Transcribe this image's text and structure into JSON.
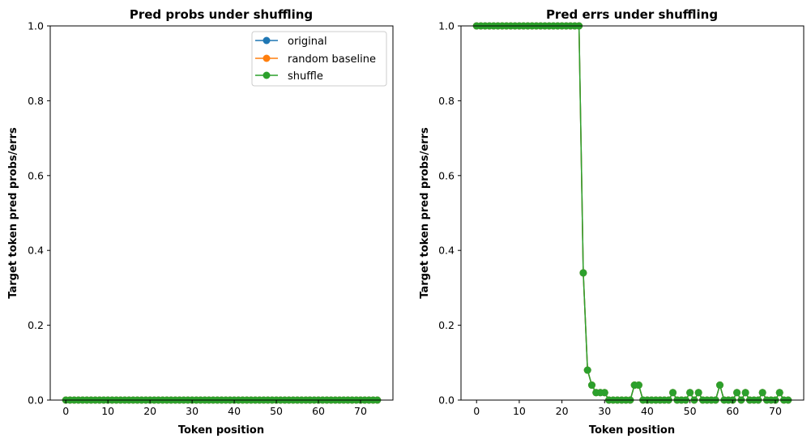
{
  "chart_data": [
    {
      "type": "line",
      "title": "Pred probs under shuffling",
      "xlabel": "Token position",
      "ylabel": "Target token pred probs/errs",
      "xlim": [
        -3.7,
        77.7
      ],
      "ylim": [
        0,
        1
      ],
      "xticks": [
        "0",
        "10",
        "20",
        "30",
        "40",
        "50",
        "60",
        "70"
      ],
      "yticks": [
        "0.0",
        "0.2",
        "0.4",
        "0.6",
        "0.8",
        "1.0"
      ],
      "grid": false,
      "legend": {
        "placement": "top-right",
        "entries": [
          "original",
          "random baseline",
          "shuffle"
        ]
      },
      "series": [
        {
          "name": "original",
          "color": "#1f77b4",
          "x_start": 0,
          "values": [
            0,
            0,
            0,
            0,
            0,
            0,
            0,
            0,
            0,
            0,
            0,
            0,
            0,
            0,
            0,
            0,
            0,
            0,
            0,
            0,
            0,
            0,
            0,
            0,
            0,
            0,
            0,
            0,
            0,
            0,
            0,
            0,
            0,
            0,
            0,
            0,
            0,
            0,
            0,
            0,
            0,
            0,
            0,
            0,
            0,
            0,
            0,
            0,
            0,
            0,
            0,
            0,
            0,
            0,
            0,
            0,
            0,
            0,
            0,
            0,
            0,
            0,
            0,
            0,
            0,
            0,
            0,
            0,
            0,
            0,
            0,
            0,
            0,
            0,
            0
          ]
        },
        {
          "name": "random baseline",
          "color": "#ff7f0e",
          "x_start": 0,
          "values": [
            0,
            0,
            0,
            0,
            0,
            0,
            0,
            0,
            0,
            0,
            0,
            0,
            0,
            0,
            0,
            0,
            0,
            0,
            0,
            0,
            0,
            0,
            0,
            0,
            0,
            0,
            0,
            0,
            0,
            0,
            0,
            0,
            0,
            0,
            0,
            0,
            0,
            0,
            0,
            0,
            0,
            0,
            0,
            0,
            0,
            0,
            0,
            0,
            0,
            0,
            0,
            0,
            0,
            0,
            0,
            0,
            0,
            0,
            0,
            0,
            0,
            0,
            0,
            0,
            0,
            0,
            0,
            0,
            0,
            0,
            0,
            0,
            0,
            0,
            0
          ]
        },
        {
          "name": "shuffle",
          "color": "#2ca02c",
          "x_start": 0,
          "values": [
            0,
            0,
            0,
            0,
            0,
            0,
            0,
            0,
            0,
            0,
            0,
            0,
            0,
            0,
            0,
            0,
            0,
            0,
            0,
            0,
            0,
            0,
            0,
            0,
            0,
            0,
            0,
            0,
            0,
            0,
            0,
            0,
            0,
            0,
            0,
            0,
            0,
            0,
            0,
            0,
            0,
            0,
            0,
            0,
            0,
            0,
            0,
            0,
            0,
            0,
            0,
            0,
            0,
            0,
            0,
            0,
            0,
            0,
            0,
            0,
            0,
            0,
            0,
            0,
            0,
            0,
            0,
            0,
            0,
            0,
            0,
            0,
            0,
            0,
            0
          ]
        }
      ]
    },
    {
      "type": "line",
      "title": "Pred errs under shuffling",
      "xlabel": "Token position",
      "ylabel": "Target token pred probs/errs",
      "xlim": [
        -3.65,
        76.65
      ],
      "ylim": [
        0,
        1
      ],
      "xticks": [
        "0",
        "10",
        "20",
        "30",
        "40",
        "50",
        "60",
        "70"
      ],
      "yticks": [
        "0.0",
        "0.2",
        "0.4",
        "0.6",
        "0.8",
        "1.0"
      ],
      "grid": false,
      "legend": null,
      "series": [
        {
          "name": "original",
          "color": "#1f77b4",
          "x_start": 0,
          "values": [
            1,
            1,
            1,
            1,
            1,
            1,
            1,
            1,
            1,
            1,
            1,
            1,
            1,
            1,
            1,
            1,
            1,
            1,
            1,
            1,
            1,
            1,
            1,
            1,
            1,
            0.34,
            0.08,
            0.04,
            0.02,
            0.02,
            0.02,
            0,
            0,
            0,
            0,
            0,
            0,
            0.04,
            0.04,
            0,
            0,
            0,
            0,
            0,
            0,
            0,
            0.02,
            0,
            0,
            0,
            0.02,
            0,
            0.02,
            0,
            0,
            0,
            0,
            0.04,
            0,
            0,
            0,
            0.02,
            0,
            0.02,
            0,
            0,
            0,
            0.02,
            0,
            0,
            0,
            0.02,
            0,
            0
          ]
        },
        {
          "name": "random baseline",
          "color": "#ff7f0e",
          "x_start": 0,
          "values": [
            1,
            1,
            1,
            1,
            1,
            1,
            1,
            1,
            1,
            1,
            1,
            1,
            1,
            1,
            1,
            1,
            1,
            1,
            1,
            1,
            1,
            1,
            1,
            1,
            1,
            0.34,
            0.08,
            0.04,
            0.02,
            0.02,
            0.02,
            0,
            0,
            0,
            0,
            0,
            0,
            0.04,
            0.04,
            0,
            0,
            0,
            0,
            0,
            0,
            0,
            0.02,
            0,
            0,
            0,
            0.02,
            0,
            0.02,
            0,
            0,
            0,
            0,
            0.04,
            0,
            0,
            0,
            0.02,
            0,
            0.02,
            0,
            0,
            0,
            0.02,
            0,
            0,
            0,
            0.02,
            0,
            0
          ]
        },
        {
          "name": "shuffle",
          "color": "#2ca02c",
          "x_start": 0,
          "values": [
            1,
            1,
            1,
            1,
            1,
            1,
            1,
            1,
            1,
            1,
            1,
            1,
            1,
            1,
            1,
            1,
            1,
            1,
            1,
            1,
            1,
            1,
            1,
            1,
            1,
            0.34,
            0.08,
            0.04,
            0.02,
            0.02,
            0.02,
            0,
            0,
            0,
            0,
            0,
            0,
            0.04,
            0.04,
            0,
            0,
            0,
            0,
            0,
            0,
            0,
            0.02,
            0,
            0,
            0,
            0.02,
            0,
            0.02,
            0,
            0,
            0,
            0,
            0.04,
            0,
            0,
            0,
            0.02,
            0,
            0.02,
            0,
            0,
            0,
            0.02,
            0,
            0,
            0,
            0.02,
            0,
            0
          ]
        }
      ]
    }
  ]
}
